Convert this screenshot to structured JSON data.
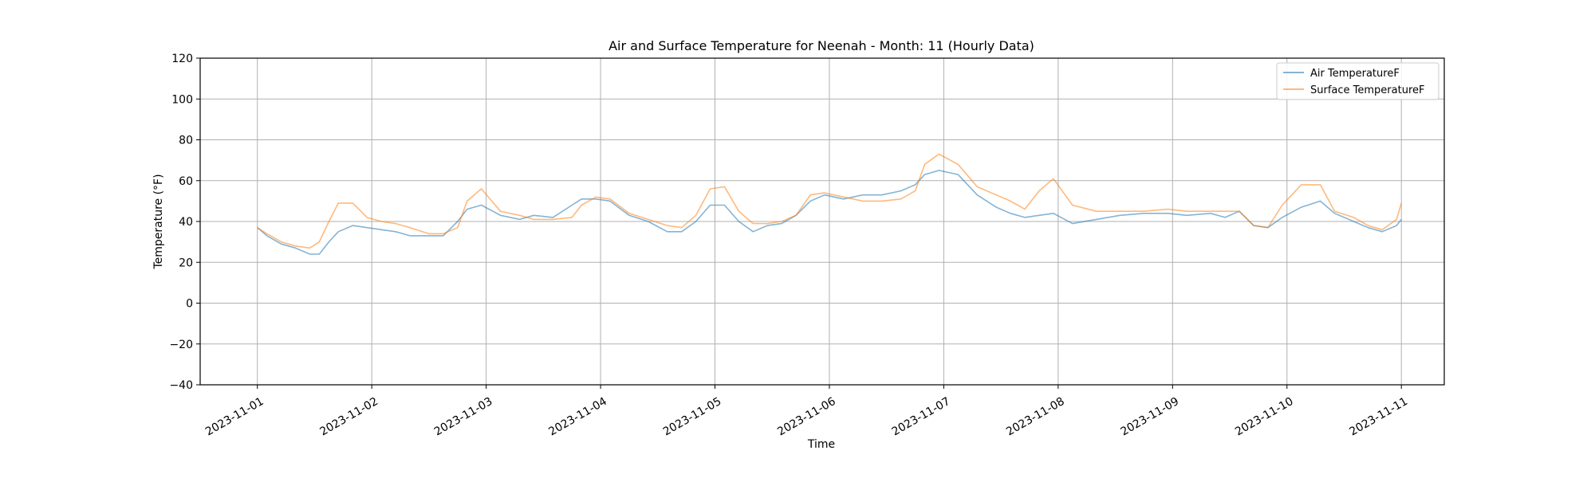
{
  "chart_data": {
    "type": "line",
    "title": "Air and Surface Temperature for Neenah - Month: 11 (Hourly Data)",
    "xlabel": "Time",
    "ylabel": "Temperature (°F)",
    "ylim": [
      -40,
      120
    ],
    "xlim": [
      "2023-10-31T12:00",
      "2023-11-11T09:00"
    ],
    "grid": true,
    "legend_position": "top-right",
    "y_ticks": [
      "−40",
      "−20",
      "0",
      "20",
      "40",
      "60",
      "80",
      "100",
      "120"
    ],
    "x_ticks": [
      "2023-11-01",
      "2023-11-02",
      "2023-11-03",
      "2023-11-04",
      "2023-11-05",
      "2023-11-06",
      "2023-11-07",
      "2023-11-08",
      "2023-11-09",
      "2023-11-10",
      "2023-11-11"
    ],
    "x": [
      "2023-11-01T00:00",
      "2023-11-01T02:00",
      "2023-11-01T05:00",
      "2023-11-01T08:00",
      "2023-11-01T11:00",
      "2023-11-01T13:00",
      "2023-11-01T15:00",
      "2023-11-01T17:00",
      "2023-11-01T20:00",
      "2023-11-01T23:00",
      "2023-11-02T02:00",
      "2023-11-02T05:00",
      "2023-11-02T08:00",
      "2023-11-02T12:00",
      "2023-11-02T15:00",
      "2023-11-02T18:00",
      "2023-11-02T20:00",
      "2023-11-02T23:00",
      "2023-11-03T03:00",
      "2023-11-03T07:00",
      "2023-11-03T10:00",
      "2023-11-03T14:00",
      "2023-11-03T18:00",
      "2023-11-03T20:00",
      "2023-11-03T23:00",
      "2023-11-04T02:00",
      "2023-11-04T06:00",
      "2023-11-04T10:00",
      "2023-11-04T14:00",
      "2023-11-04T17:00",
      "2023-11-04T20:00",
      "2023-11-04T23:00",
      "2023-11-05T02:00",
      "2023-11-05T05:00",
      "2023-11-05T08:00",
      "2023-11-05T11:00",
      "2023-11-05T14:00",
      "2023-11-05T17:00",
      "2023-11-05T20:00",
      "2023-11-05T23:00",
      "2023-11-06T03:00",
      "2023-11-06T07:00",
      "2023-11-06T11:00",
      "2023-11-06T15:00",
      "2023-11-06T18:00",
      "2023-11-06T20:00",
      "2023-11-06T23:00",
      "2023-11-07T03:00",
      "2023-11-07T07:00",
      "2023-11-07T11:00",
      "2023-11-07T14:00",
      "2023-11-07T17:00",
      "2023-11-07T20:00",
      "2023-11-07T23:00",
      "2023-11-08T03:00",
      "2023-11-08T08:00",
      "2023-11-08T13:00",
      "2023-11-08T18:00",
      "2023-11-08T23:00",
      "2023-11-09T03:00",
      "2023-11-09T08:00",
      "2023-11-09T11:00",
      "2023-11-09T14:00",
      "2023-11-09T17:00",
      "2023-11-09T20:00",
      "2023-11-09T23:00",
      "2023-11-10T03:00",
      "2023-11-10T07:00",
      "2023-11-10T10:00",
      "2023-11-10T14:00",
      "2023-11-10T17:00",
      "2023-11-10T20:00",
      "2023-11-10T23:00",
      "2023-11-11T00:00"
    ],
    "series": [
      {
        "name": "Air TemperatureF",
        "color": "#1f77b4",
        "values": [
          37,
          33,
          29,
          27,
          24,
          24,
          30,
          35,
          38,
          37,
          36,
          35,
          33,
          33,
          33,
          40,
          46,
          48,
          43,
          41,
          43,
          42,
          48,
          51,
          51,
          50,
          43,
          40,
          35,
          35,
          40,
          48,
          48,
          40,
          35,
          38,
          39,
          43,
          50,
          53,
          51,
          53,
          53,
          55,
          58,
          63,
          65,
          63,
          53,
          47,
          44,
          42,
          43,
          44,
          39,
          41,
          43,
          44,
          44,
          43,
          44,
          42,
          45,
          38,
          37,
          42,
          47,
          50,
          44,
          40,
          37,
          35,
          38,
          41
        ]
      },
      {
        "name": "Surface TemperatureF",
        "color": "#ff7f0e",
        "values": [
          37,
          34,
          30,
          28,
          27,
          30,
          40,
          49,
          49,
          42,
          40,
          39,
          37,
          34,
          34,
          37,
          50,
          56,
          45,
          43,
          41,
          41,
          42,
          48,
          52,
          51,
          44,
          41,
          38,
          37,
          43,
          56,
          57,
          45,
          39,
          39,
          40,
          43,
          53,
          54,
          52,
          50,
          50,
          51,
          55,
          68,
          73,
          68,
          57,
          53,
          50,
          46,
          55,
          61,
          48,
          45,
          45,
          45,
          46,
          45,
          45,
          45,
          45,
          38,
          37,
          48,
          58,
          58,
          45,
          42,
          38,
          36,
          41,
          49
        ]
      }
    ]
  }
}
